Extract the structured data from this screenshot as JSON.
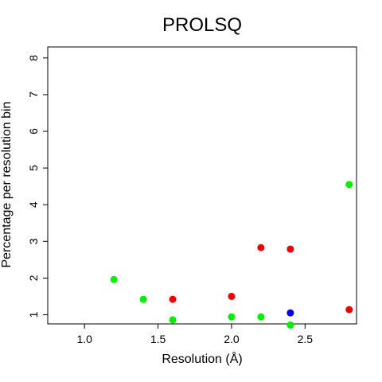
{
  "chart_data": {
    "type": "scatter",
    "title": "PROLSQ",
    "xlabel": "Resolution (Å)",
    "ylabel": "Percentage per resolution bin",
    "xlim": [
      0.75,
      2.85
    ],
    "ylim": [
      0.75,
      8.3
    ],
    "xticks": [
      1.0,
      1.5,
      2.0,
      2.5
    ],
    "xtick_labels": [
      "1.0",
      "1.5",
      "2.0",
      "2.5"
    ],
    "yticks": [
      1,
      2,
      3,
      4,
      5,
      6,
      7,
      8
    ],
    "ytick_labels": [
      "1",
      "2",
      "3",
      "4",
      "5",
      "6",
      "7",
      "8"
    ],
    "grid": false,
    "series": [
      {
        "color": "#00ee00",
        "points": [
          {
            "x": 1.2,
            "y": 1.96
          },
          {
            "x": 1.4,
            "y": 1.42
          },
          {
            "x": 1.6,
            "y": 0.86
          },
          {
            "x": 2.0,
            "y": 0.94
          },
          {
            "x": 2.2,
            "y": 0.94
          },
          {
            "x": 2.4,
            "y": 0.72
          },
          {
            "x": 2.8,
            "y": 4.55
          }
        ]
      },
      {
        "color": "#ee0000",
        "points": [
          {
            "x": 1.6,
            "y": 1.42
          },
          {
            "x": 2.0,
            "y": 1.5
          },
          {
            "x": 2.2,
            "y": 2.83
          },
          {
            "x": 2.4,
            "y": 2.79
          },
          {
            "x": 2.8,
            "y": 1.14
          }
        ]
      },
      {
        "color": "#0000ee",
        "points": [
          {
            "x": 2.4,
            "y": 1.05
          }
        ]
      }
    ]
  }
}
